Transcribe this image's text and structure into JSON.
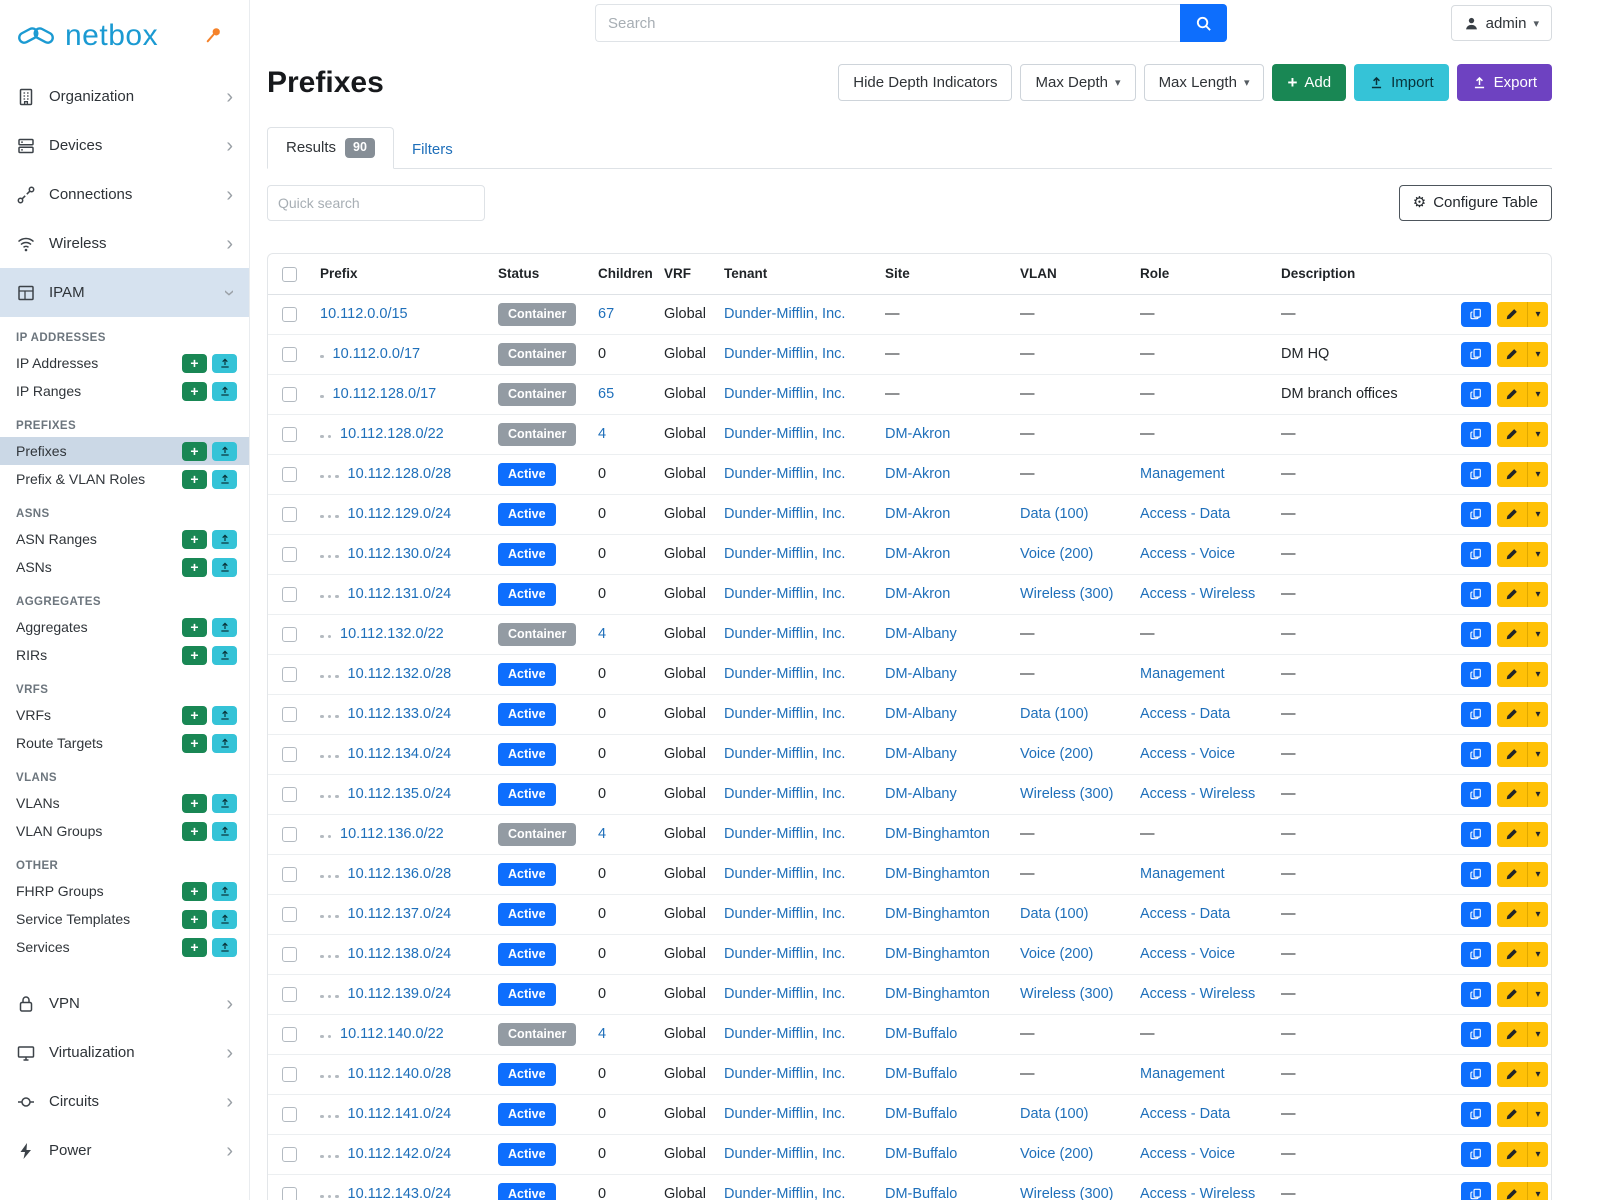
{
  "topbar": {
    "search_placeholder": "Search",
    "user": "admin"
  },
  "sidebar": {
    "brand": "netbox",
    "top_items": [
      {
        "label": "Organization",
        "icon": "building"
      },
      {
        "label": "Devices",
        "icon": "server"
      },
      {
        "label": "Connections",
        "icon": "plug"
      },
      {
        "label": "Wireless",
        "icon": "wifi"
      }
    ],
    "ipam": {
      "label": "IPAM",
      "icon": "grid",
      "sections": [
        {
          "header": "IP ADDRESSES",
          "items": [
            {
              "label": "IP Addresses"
            },
            {
              "label": "IP Ranges"
            }
          ]
        },
        {
          "header": "PREFIXES",
          "items": [
            {
              "label": "Prefixes",
              "active": true
            },
            {
              "label": "Prefix & VLAN Roles"
            }
          ]
        },
        {
          "header": "ASNS",
          "items": [
            {
              "label": "ASN Ranges"
            },
            {
              "label": "ASNs"
            }
          ]
        },
        {
          "header": "AGGREGATES",
          "items": [
            {
              "label": "Aggregates"
            },
            {
              "label": "RIRs"
            }
          ]
        },
        {
          "header": "VRFS",
          "items": [
            {
              "label": "VRFs"
            },
            {
              "label": "Route Targets"
            }
          ]
        },
        {
          "header": "VLANS",
          "items": [
            {
              "label": "VLANs"
            },
            {
              "label": "VLAN Groups"
            }
          ]
        },
        {
          "header": "OTHER",
          "items": [
            {
              "label": "FHRP Groups"
            },
            {
              "label": "Service Templates"
            },
            {
              "label": "Services"
            }
          ]
        }
      ]
    },
    "bottom_items": [
      {
        "label": "VPN",
        "icon": "lock"
      },
      {
        "label": "Virtualization",
        "icon": "monitor"
      },
      {
        "label": "Circuits",
        "icon": "circuit"
      },
      {
        "label": "Power",
        "icon": "lightning"
      }
    ]
  },
  "page": {
    "title": "Prefixes",
    "toolbar": {
      "hide_depth": "Hide Depth Indicators",
      "max_depth": "Max Depth",
      "max_length": "Max Length",
      "add": "Add",
      "import": "Import",
      "export": "Export"
    },
    "tabs": {
      "results": "Results",
      "results_count": "90",
      "filters": "Filters"
    },
    "quick_search_placeholder": "Quick search",
    "configure_table": "Configure Table"
  },
  "colors": {
    "link": "#1e6fba",
    "active_badge": "#0d6efd",
    "container_badge": "#939ba3",
    "add_green": "#198754",
    "import_teal": "#35c3d7",
    "export_purple": "#6e42c1",
    "edit_yellow": "#ffc107",
    "brand_blue": "#1b9ad2",
    "pin_orange": "#f5822a"
  },
  "table": {
    "columns": [
      "Prefix",
      "Status",
      "Children",
      "VRF",
      "Tenant",
      "Site",
      "VLAN",
      "Role",
      "Description"
    ],
    "empty": "—",
    "rows": [
      {
        "prefix": "10.112.0.0/15",
        "depth": 0,
        "status": "Container",
        "children": "67",
        "vrf": "Global",
        "tenant": "Dunder-Mifflin, Inc.",
        "site": "—",
        "vlan": "—",
        "role": "—",
        "description": "—"
      },
      {
        "prefix": "10.112.0.0/17",
        "depth": 1,
        "status": "Container",
        "children": "0",
        "vrf": "Global",
        "tenant": "Dunder-Mifflin, Inc.",
        "site": "—",
        "vlan": "—",
        "role": "—",
        "description": "DM HQ"
      },
      {
        "prefix": "10.112.128.0/17",
        "depth": 1,
        "status": "Container",
        "children": "65",
        "vrf": "Global",
        "tenant": "Dunder-Mifflin, Inc.",
        "site": "—",
        "vlan": "—",
        "role": "—",
        "description": "DM branch offices"
      },
      {
        "prefix": "10.112.128.0/22",
        "depth": 2,
        "status": "Container",
        "children": "4",
        "vrf": "Global",
        "tenant": "Dunder-Mifflin, Inc.",
        "site": "DM-Akron",
        "vlan": "—",
        "role": "—",
        "description": "—"
      },
      {
        "prefix": "10.112.128.0/28",
        "depth": 3,
        "status": "Active",
        "children": "0",
        "vrf": "Global",
        "tenant": "Dunder-Mifflin, Inc.",
        "site": "DM-Akron",
        "vlan": "—",
        "role": "Management",
        "description": "—"
      },
      {
        "prefix": "10.112.129.0/24",
        "depth": 3,
        "status": "Active",
        "children": "0",
        "vrf": "Global",
        "tenant": "Dunder-Mifflin, Inc.",
        "site": "DM-Akron",
        "vlan": "Data (100)",
        "role": "Access - Data",
        "description": "—"
      },
      {
        "prefix": "10.112.130.0/24",
        "depth": 3,
        "status": "Active",
        "children": "0",
        "vrf": "Global",
        "tenant": "Dunder-Mifflin, Inc.",
        "site": "DM-Akron",
        "vlan": "Voice (200)",
        "role": "Access - Voice",
        "description": "—"
      },
      {
        "prefix": "10.112.131.0/24",
        "depth": 3,
        "status": "Active",
        "children": "0",
        "vrf": "Global",
        "tenant": "Dunder-Mifflin, Inc.",
        "site": "DM-Akron",
        "vlan": "Wireless (300)",
        "role": "Access - Wireless",
        "description": "—"
      },
      {
        "prefix": "10.112.132.0/22",
        "depth": 2,
        "status": "Container",
        "children": "4",
        "vrf": "Global",
        "tenant": "Dunder-Mifflin, Inc.",
        "site": "DM-Albany",
        "vlan": "—",
        "role": "—",
        "description": "—"
      },
      {
        "prefix": "10.112.132.0/28",
        "depth": 3,
        "status": "Active",
        "children": "0",
        "vrf": "Global",
        "tenant": "Dunder-Mifflin, Inc.",
        "site": "DM-Albany",
        "vlan": "—",
        "role": "Management",
        "description": "—"
      },
      {
        "prefix": "10.112.133.0/24",
        "depth": 3,
        "status": "Active",
        "children": "0",
        "vrf": "Global",
        "tenant": "Dunder-Mifflin, Inc.",
        "site": "DM-Albany",
        "vlan": "Data (100)",
        "role": "Access - Data",
        "description": "—"
      },
      {
        "prefix": "10.112.134.0/24",
        "depth": 3,
        "status": "Active",
        "children": "0",
        "vrf": "Global",
        "tenant": "Dunder-Mifflin, Inc.",
        "site": "DM-Albany",
        "vlan": "Voice (200)",
        "role": "Access - Voice",
        "description": "—"
      },
      {
        "prefix": "10.112.135.0/24",
        "depth": 3,
        "status": "Active",
        "children": "0",
        "vrf": "Global",
        "tenant": "Dunder-Mifflin, Inc.",
        "site": "DM-Albany",
        "vlan": "Wireless (300)",
        "role": "Access - Wireless",
        "description": "—"
      },
      {
        "prefix": "10.112.136.0/22",
        "depth": 2,
        "status": "Container",
        "children": "4",
        "vrf": "Global",
        "tenant": "Dunder-Mifflin, Inc.",
        "site": "DM-Binghamton",
        "vlan": "—",
        "role": "—",
        "description": "—"
      },
      {
        "prefix": "10.112.136.0/28",
        "depth": 3,
        "status": "Active",
        "children": "0",
        "vrf": "Global",
        "tenant": "Dunder-Mifflin, Inc.",
        "site": "DM-Binghamton",
        "vlan": "—",
        "role": "Management",
        "description": "—"
      },
      {
        "prefix": "10.112.137.0/24",
        "depth": 3,
        "status": "Active",
        "children": "0",
        "vrf": "Global",
        "tenant": "Dunder-Mifflin, Inc.",
        "site": "DM-Binghamton",
        "vlan": "Data (100)",
        "role": "Access - Data",
        "description": "—"
      },
      {
        "prefix": "10.112.138.0/24",
        "depth": 3,
        "status": "Active",
        "children": "0",
        "vrf": "Global",
        "tenant": "Dunder-Mifflin, Inc.",
        "site": "DM-Binghamton",
        "vlan": "Voice (200)",
        "role": "Access - Voice",
        "description": "—"
      },
      {
        "prefix": "10.112.139.0/24",
        "depth": 3,
        "status": "Active",
        "children": "0",
        "vrf": "Global",
        "tenant": "Dunder-Mifflin, Inc.",
        "site": "DM-Binghamton",
        "vlan": "Wireless (300)",
        "role": "Access - Wireless",
        "description": "—"
      },
      {
        "prefix": "10.112.140.0/22",
        "depth": 2,
        "status": "Container",
        "children": "4",
        "vrf": "Global",
        "tenant": "Dunder-Mifflin, Inc.",
        "site": "DM-Buffalo",
        "vlan": "—",
        "role": "—",
        "description": "—"
      },
      {
        "prefix": "10.112.140.0/28",
        "depth": 3,
        "status": "Active",
        "children": "0",
        "vrf": "Global",
        "tenant": "Dunder-Mifflin, Inc.",
        "site": "DM-Buffalo",
        "vlan": "—",
        "role": "Management",
        "description": "—"
      },
      {
        "prefix": "10.112.141.0/24",
        "depth": 3,
        "status": "Active",
        "children": "0",
        "vrf": "Global",
        "tenant": "Dunder-Mifflin, Inc.",
        "site": "DM-Buffalo",
        "vlan": "Data (100)",
        "role": "Access - Data",
        "description": "—"
      },
      {
        "prefix": "10.112.142.0/24",
        "depth": 3,
        "status": "Active",
        "children": "0",
        "vrf": "Global",
        "tenant": "Dunder-Mifflin, Inc.",
        "site": "DM-Buffalo",
        "vlan": "Voice (200)",
        "role": "Access - Voice",
        "description": "—"
      },
      {
        "prefix": "10.112.143.0/24",
        "depth": 3,
        "status": "Active",
        "children": "0",
        "vrf": "Global",
        "tenant": "Dunder-Mifflin, Inc.",
        "site": "DM-Buffalo",
        "vlan": "Wireless (300)",
        "role": "Access - Wireless",
        "description": "—"
      }
    ]
  }
}
